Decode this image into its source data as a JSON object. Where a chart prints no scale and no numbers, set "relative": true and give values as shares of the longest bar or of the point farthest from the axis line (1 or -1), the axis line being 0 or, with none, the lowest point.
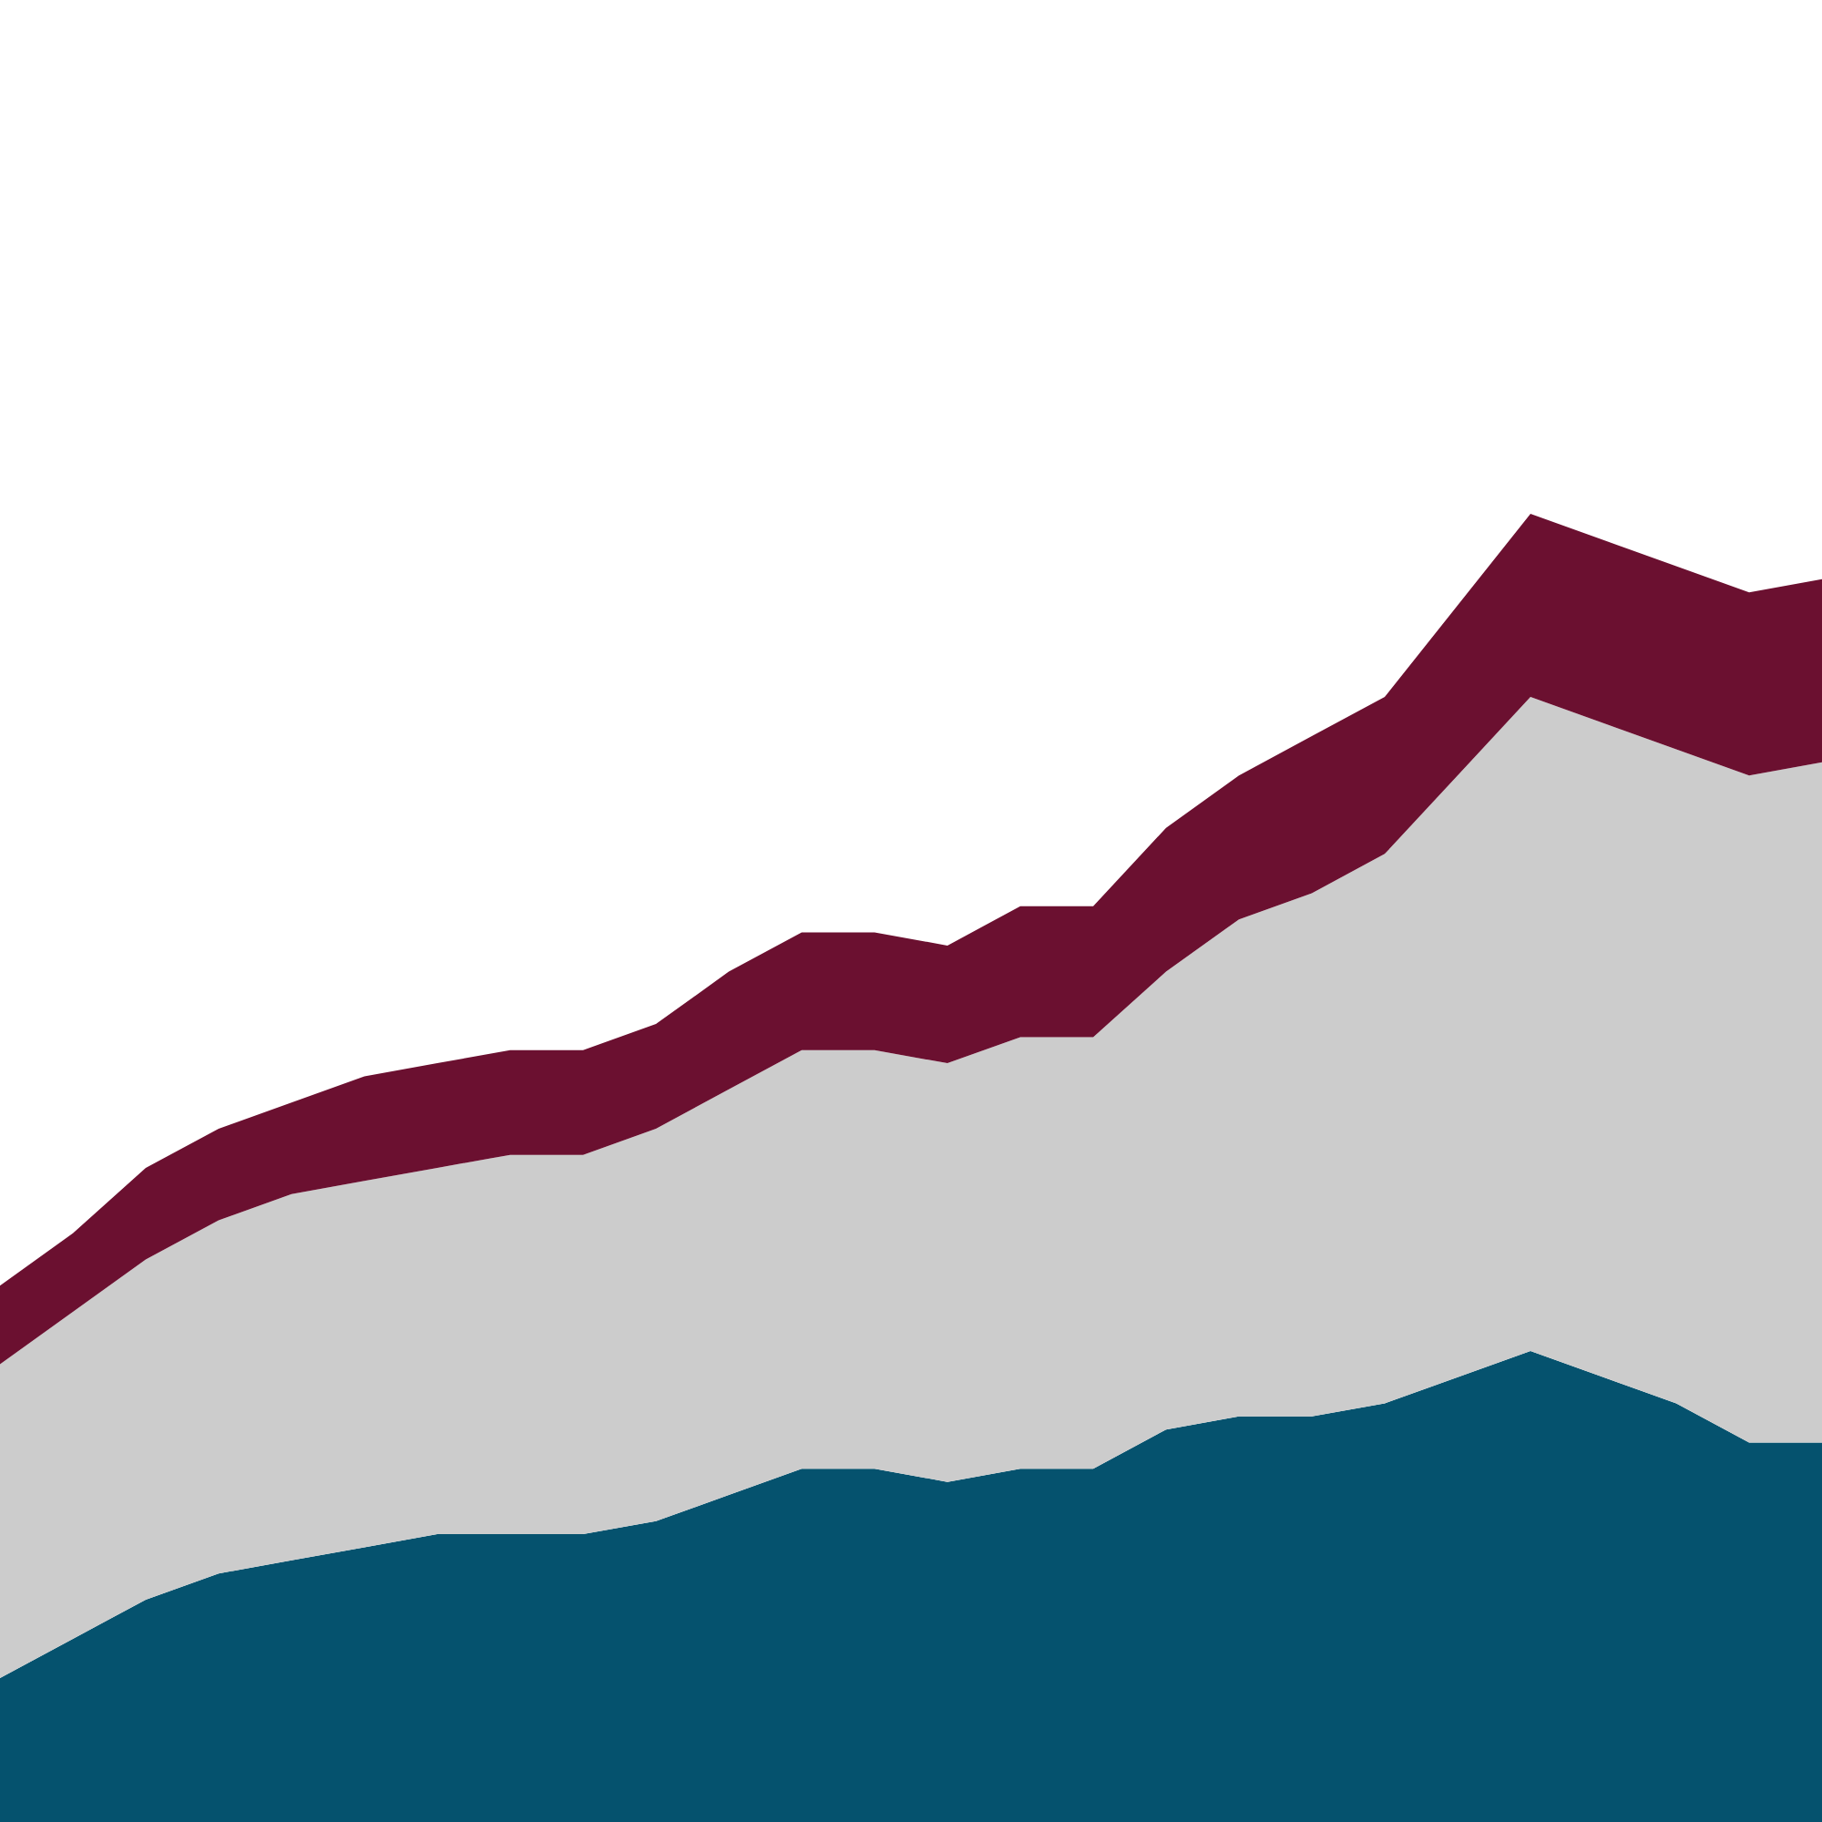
{
  "chart_data": {
    "type": "area",
    "relative": true,
    "stacked": true,
    "grid": false,
    "categories": [
      null,
      null,
      null,
      null,
      null,
      null,
      null,
      null,
      null,
      null,
      null,
      null,
      null,
      null,
      null,
      null,
      null,
      null,
      null,
      null,
      null,
      null,
      null,
      null,
      null,
      null
    ],
    "series": [
      {
        "color": "#05526e",
        "values": [
          0.11,
          0.14,
          0.17,
          0.19,
          0.2,
          0.21,
          0.22,
          0.22,
          0.22,
          0.23,
          0.25,
          0.27,
          0.27,
          0.26,
          0.27,
          0.27,
          0.3,
          0.31,
          0.31,
          0.32,
          0.34,
          0.36,
          0.34,
          0.32,
          0.29,
          0.29
        ]
      },
      {
        "color": "#cccccc",
        "values": [
          0.24,
          0.25,
          0.26,
          0.27,
          0.28,
          0.28,
          0.28,
          0.29,
          0.29,
          0.3,
          0.31,
          0.32,
          0.32,
          0.32,
          0.33,
          0.33,
          0.35,
          0.38,
          0.4,
          0.42,
          0.46,
          0.5,
          0.5,
          0.5,
          0.51,
          0.52
        ]
      },
      {
        "color": "#6b1030",
        "values": [
          0.06,
          0.06,
          0.07,
          0.07,
          0.07,
          0.08,
          0.08,
          0.08,
          0.08,
          0.08,
          0.09,
          0.09,
          0.09,
          0.09,
          0.1,
          0.1,
          0.11,
          0.11,
          0.12,
          0.12,
          0.13,
          0.14,
          0.14,
          0.14,
          0.14,
          0.14
        ]
      }
    ]
  }
}
